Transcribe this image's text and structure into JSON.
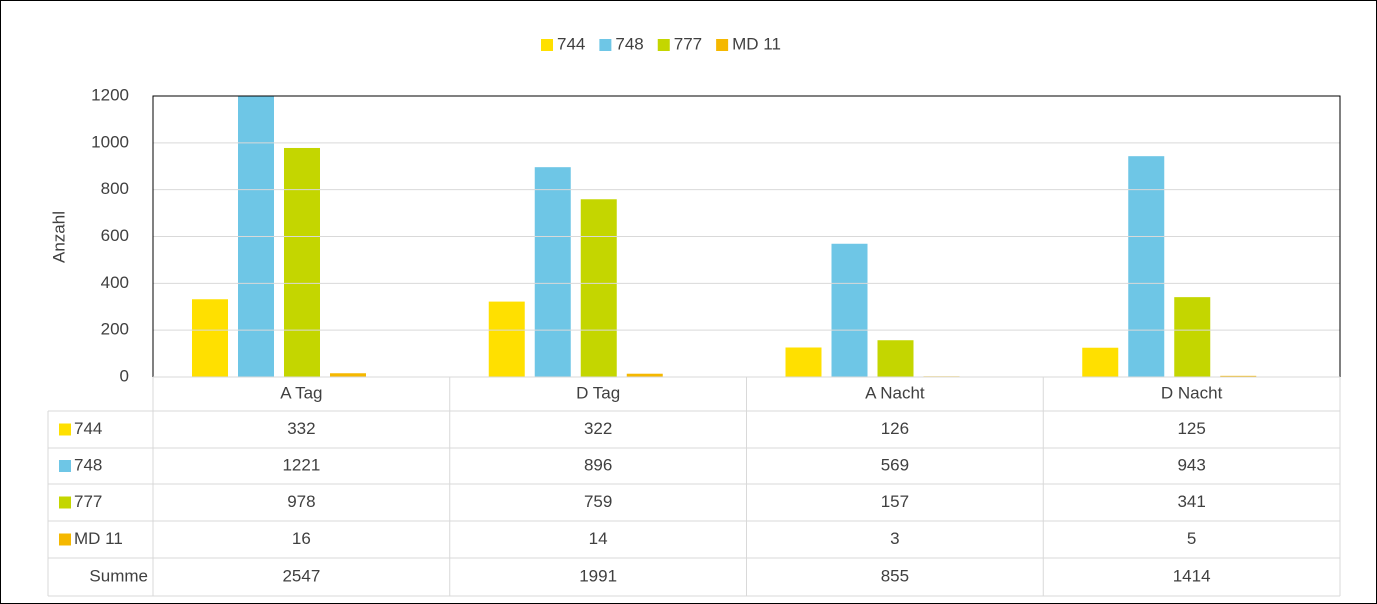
{
  "chart_data": {
    "type": "bar",
    "y_label": "Anzahl",
    "categories": [
      "A Tag",
      "D Tag",
      "A Nacht",
      "D Nacht"
    ],
    "series": [
      {
        "name": "744",
        "color": "#ffe000",
        "values": [
          332,
          322,
          126,
          125
        ]
      },
      {
        "name": "748",
        "color": "#6ec6e6",
        "values": [
          1221,
          896,
          569,
          943
        ]
      },
      {
        "name": "777",
        "color": "#c4d600",
        "values": [
          978,
          759,
          157,
          341
        ]
      },
      {
        "name": "MD 11",
        "color": "#f5b800",
        "values": [
          16,
          14,
          3,
          5
        ]
      }
    ],
    "totals": {
      "label": "Summe",
      "values": [
        2547,
        1991,
        855,
        1414
      ]
    },
    "ylim": [
      0,
      1200
    ],
    "yticks": [
      0,
      200,
      400,
      600,
      800,
      1000,
      1200
    ],
    "grid": true,
    "legend": "top"
  }
}
